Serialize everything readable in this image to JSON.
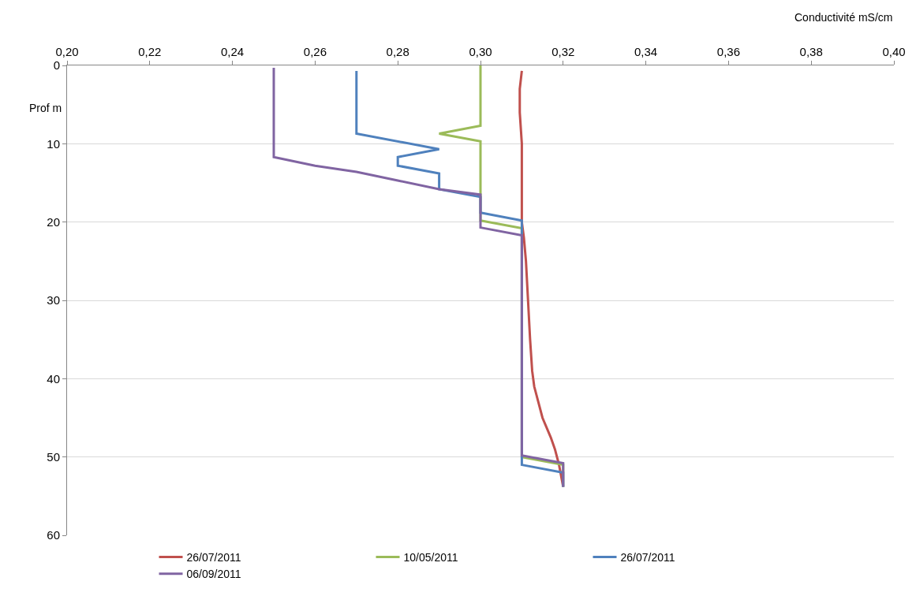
{
  "chart_data": {
    "type": "line",
    "xlabel": "Conductivité mS/cm",
    "ylabel": "Prof m",
    "xlim": [
      0.2,
      0.4
    ],
    "xticks": [
      {
        "value": 0.2,
        "label": "0,20"
      },
      {
        "value": 0.22,
        "label": "0,22"
      },
      {
        "value": 0.24,
        "label": "0,24"
      },
      {
        "value": 0.26,
        "label": "0,26"
      },
      {
        "value": 0.28,
        "label": "0,28"
      },
      {
        "value": 0.3,
        "label": "0,30"
      },
      {
        "value": 0.32,
        "label": "0,32"
      },
      {
        "value": 0.34,
        "label": "0,34"
      },
      {
        "value": 0.36,
        "label": "0,36"
      },
      {
        "value": 0.38,
        "label": "0,38"
      },
      {
        "value": 0.4,
        "label": "0,40"
      }
    ],
    "ylim": [
      60,
      0
    ],
    "yticks": [
      0,
      10,
      20,
      30,
      40,
      50,
      60
    ],
    "grid": "y",
    "legend": "bottom",
    "marker": "none",
    "line_style": "solid",
    "series": [
      {
        "name": "26/07/2011",
        "color": "#c0504d",
        "x": [
          0.31,
          0.3095,
          0.3095,
          0.31,
          0.31,
          0.3105,
          0.311,
          0.3115,
          0.312,
          0.3125,
          0.313,
          0.315,
          0.317,
          0.318,
          0.319,
          0.32
        ],
        "values": [
          0.7,
          3,
          6,
          10,
          20,
          22,
          25,
          30,
          35,
          39,
          41,
          45,
          47.5,
          49,
          51,
          53.8
        ]
      },
      {
        "name": "10/05/2011",
        "color": "#9bbb59",
        "x": [
          0.3,
          0.3,
          0.29,
          0.3,
          0.3,
          0.31,
          0.31,
          0.32,
          0.32
        ],
        "values": [
          0,
          7.7,
          8.7,
          9.7,
          19.8,
          20.8,
          50,
          51,
          53.8
        ]
      },
      {
        "name": "26/07/2011",
        "color": "#4f81bd",
        "x": [
          0.27,
          0.27,
          0.29,
          0.28,
          0.28,
          0.29,
          0.29,
          0.3,
          0.3,
          0.31,
          0.31,
          0.32,
          0.32
        ],
        "values": [
          0.7,
          8.7,
          10.7,
          11.7,
          12.8,
          13.8,
          15.8,
          16.8,
          18.8,
          19.8,
          51,
          52,
          53.8
        ]
      },
      {
        "name": "06/09/2011",
        "color": "#8064a2",
        "x": [
          0.25,
          0.25,
          0.26,
          0.27,
          0.28,
          0.29,
          0.3,
          0.3,
          0.31,
          0.31,
          0.32,
          0.32
        ],
        "values": [
          0.3,
          11.7,
          12.8,
          13.6,
          14.7,
          15.8,
          16.5,
          20.7,
          21.7,
          49.8,
          50.8,
          53.8
        ]
      }
    ]
  }
}
